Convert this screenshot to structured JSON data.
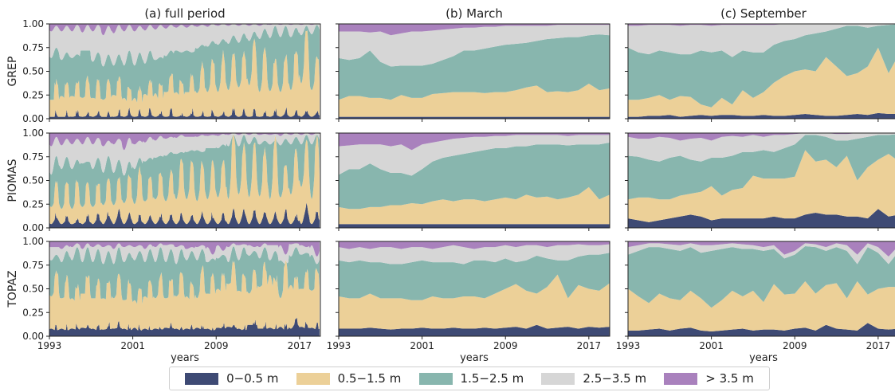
{
  "chart_data": {
    "type": "area",
    "stacked": true,
    "legend": {
      "placement": "bottom",
      "entries": [
        {
          "label": "0−0.5 m",
          "color": "#3e4a74"
        },
        {
          "label": "0.5−1.5 m",
          "color": "#ecd098"
        },
        {
          "label": "1.5−2.5 m",
          "color": "#88b6ae"
        },
        {
          "label": "2.5−3.5 m",
          "color": "#d6d6d6"
        },
        {
          "label": "> 3.5 m",
          "color": "#a981bd"
        }
      ]
    },
    "columns": [
      {
        "title": "(a) full period",
        "xlabel": "years",
        "xticks": [
          "1993",
          "2001",
          "2009",
          "2017"
        ]
      },
      {
        "title": "(b) March",
        "xlabel": "years",
        "xticks": [
          "1993",
          "2001",
          "2009",
          "2017"
        ]
      },
      {
        "title": "(c) September",
        "xlabel": "years",
        "xticks": [
          "1993",
          "2001",
          "2009",
          "2017"
        ]
      }
    ],
    "rows": [
      {
        "ylabel": "GREP"
      },
      {
        "ylabel": "PIOMAS"
      },
      {
        "ylabel": "TOPAZ"
      }
    ],
    "yticks": [
      "0.00",
      "0.25",
      "0.50",
      "0.75",
      "1.00"
    ],
    "ylim": [
      0,
      1
    ],
    "xlim": [
      1993,
      2019
    ],
    "grid": false,
    "monthly": {
      "description_of_values": "cumulative stacked boundaries (band1, band1+2, band1+2+3, band1+2+3+4) at annual minimum (September) and maximum (March)",
      "series_names": [
        "0−0.5 m",
        "0.5−1.5 m",
        "1.5−2.5 m",
        "2.5−3.5 m",
        "> 3.5 m"
      ]
    },
    "panels": [
      {
        "row": "GREP",
        "column": "(b) March",
        "years": [
          1993,
          1994,
          1995,
          1996,
          1997,
          1998,
          1999,
          2000,
          2001,
          2002,
          2003,
          2004,
          2005,
          2006,
          2007,
          2008,
          2009,
          2010,
          2011,
          2012,
          2013,
          2014,
          2015,
          2016,
          2017,
          2018,
          2019
        ],
        "cumulative": [
          [
            0.02,
            0.02,
            0.02,
            0.02,
            0.02,
            0.02,
            0.02,
            0.02,
            0.02,
            0.02,
            0.02,
            0.02,
            0.02,
            0.02,
            0.02,
            0.02,
            0.02,
            0.02,
            0.02,
            0.02,
            0.02,
            0.02,
            0.02,
            0.02,
            0.02,
            0.02,
            0.02
          ],
          [
            0.2,
            0.24,
            0.24,
            0.22,
            0.22,
            0.2,
            0.25,
            0.22,
            0.22,
            0.26,
            0.27,
            0.28,
            0.28,
            0.28,
            0.27,
            0.28,
            0.28,
            0.3,
            0.33,
            0.35,
            0.28,
            0.29,
            0.28,
            0.3,
            0.37,
            0.3,
            0.32
          ],
          [
            0.64,
            0.62,
            0.64,
            0.72,
            0.6,
            0.55,
            0.56,
            0.56,
            0.56,
            0.58,
            0.62,
            0.66,
            0.72,
            0.72,
            0.74,
            0.76,
            0.78,
            0.79,
            0.8,
            0.82,
            0.84,
            0.85,
            0.86,
            0.86,
            0.88,
            0.89,
            0.88
          ],
          [
            0.92,
            0.92,
            0.92,
            0.91,
            0.92,
            0.88,
            0.9,
            0.92,
            0.92,
            0.93,
            0.94,
            0.95,
            0.96,
            0.96,
            0.97,
            0.97,
            0.98,
            0.98,
            0.98,
            0.98,
            0.98,
            0.99,
            0.99,
            0.99,
            0.99,
            0.99,
            0.99
          ]
        ]
      },
      {
        "row": "GREP",
        "column": "(c) September",
        "years": [
          1993,
          1994,
          1995,
          1996,
          1997,
          1998,
          1999,
          2000,
          2001,
          2002,
          2003,
          2004,
          2005,
          2006,
          2007,
          2008,
          2009,
          2010,
          2011,
          2012,
          2013,
          2014,
          2015,
          2016,
          2017,
          2018,
          2019
        ],
        "cumulative": [
          [
            0.02,
            0.02,
            0.03,
            0.03,
            0.04,
            0.02,
            0.03,
            0.04,
            0.03,
            0.04,
            0.04,
            0.03,
            0.03,
            0.04,
            0.03,
            0.03,
            0.04,
            0.05,
            0.04,
            0.03,
            0.03,
            0.04,
            0.05,
            0.04,
            0.06,
            0.05,
            0.05
          ],
          [
            0.2,
            0.2,
            0.22,
            0.25,
            0.2,
            0.24,
            0.23,
            0.15,
            0.12,
            0.22,
            0.15,
            0.3,
            0.22,
            0.28,
            0.38,
            0.45,
            0.5,
            0.52,
            0.5,
            0.65,
            0.55,
            0.45,
            0.48,
            0.55,
            0.75,
            0.48,
            0.68
          ],
          [
            0.75,
            0.7,
            0.68,
            0.72,
            0.7,
            0.68,
            0.68,
            0.72,
            0.7,
            0.72,
            0.65,
            0.72,
            0.7,
            0.7,
            0.78,
            0.82,
            0.84,
            0.88,
            0.9,
            0.92,
            0.95,
            0.98,
            0.98,
            0.96,
            0.98,
            0.99,
            1.0
          ],
          [
            0.98,
            0.98,
            0.99,
            0.99,
            0.99,
            0.98,
            0.99,
            0.99,
            0.98,
            0.99,
            0.99,
            0.99,
            0.99,
            0.99,
            0.99,
            1.0,
            1.0,
            1.0,
            1.0,
            1.0,
            1.0,
            1.0,
            1.0,
            1.0,
            1.0,
            1.0,
            1.0
          ]
        ]
      },
      {
        "row": "PIOMAS",
        "column": "(b) March",
        "years": [
          1993,
          1994,
          1995,
          1996,
          1997,
          1998,
          1999,
          2000,
          2001,
          2002,
          2003,
          2004,
          2005,
          2006,
          2007,
          2008,
          2009,
          2010,
          2011,
          2012,
          2013,
          2014,
          2015,
          2016,
          2017,
          2018,
          2019
        ],
        "cumulative": [
          [
            0.04,
            0.04,
            0.04,
            0.04,
            0.04,
            0.04,
            0.04,
            0.04,
            0.04,
            0.04,
            0.04,
            0.04,
            0.04,
            0.04,
            0.04,
            0.04,
            0.04,
            0.04,
            0.04,
            0.04,
            0.04,
            0.04,
            0.04,
            0.04,
            0.04,
            0.04,
            0.04
          ],
          [
            0.22,
            0.2,
            0.2,
            0.22,
            0.22,
            0.24,
            0.24,
            0.26,
            0.25,
            0.28,
            0.3,
            0.28,
            0.3,
            0.3,
            0.28,
            0.3,
            0.32,
            0.3,
            0.35,
            0.32,
            0.33,
            0.3,
            0.32,
            0.35,
            0.43,
            0.3,
            0.35
          ],
          [
            0.56,
            0.62,
            0.62,
            0.68,
            0.62,
            0.58,
            0.58,
            0.55,
            0.62,
            0.7,
            0.74,
            0.76,
            0.78,
            0.8,
            0.82,
            0.84,
            0.84,
            0.86,
            0.86,
            0.88,
            0.88,
            0.88,
            0.87,
            0.88,
            0.88,
            0.88,
            0.9
          ],
          [
            0.86,
            0.87,
            0.88,
            0.88,
            0.88,
            0.86,
            0.88,
            0.82,
            0.88,
            0.9,
            0.92,
            0.94,
            0.95,
            0.96,
            0.96,
            0.97,
            0.97,
            0.98,
            0.98,
            0.98,
            0.98,
            0.98,
            0.97,
            0.98,
            0.98,
            0.98,
            0.98
          ]
        ]
      },
      {
        "row": "PIOMAS",
        "column": "(c) September",
        "years": [
          1993,
          1994,
          1995,
          1996,
          1997,
          1998,
          1999,
          2000,
          2001,
          2002,
          2003,
          2004,
          2005,
          2006,
          2007,
          2008,
          2009,
          2010,
          2011,
          2012,
          2013,
          2014,
          2015,
          2016,
          2017,
          2018,
          2019
        ],
        "cumulative": [
          [
            0.1,
            0.08,
            0.06,
            0.08,
            0.1,
            0.12,
            0.14,
            0.12,
            0.08,
            0.1,
            0.1,
            0.1,
            0.1,
            0.1,
            0.12,
            0.1,
            0.1,
            0.14,
            0.16,
            0.14,
            0.14,
            0.12,
            0.12,
            0.1,
            0.2,
            0.12,
            0.14
          ],
          [
            0.3,
            0.32,
            0.32,
            0.3,
            0.3,
            0.34,
            0.36,
            0.38,
            0.44,
            0.34,
            0.4,
            0.42,
            0.55,
            0.52,
            0.52,
            0.52,
            0.54,
            0.82,
            0.7,
            0.72,
            0.64,
            0.76,
            0.5,
            0.64,
            0.72,
            0.78,
            0.7
          ],
          [
            0.76,
            0.75,
            0.72,
            0.7,
            0.74,
            0.76,
            0.72,
            0.7,
            0.74,
            0.74,
            0.76,
            0.8,
            0.8,
            0.82,
            0.8,
            0.84,
            0.88,
            0.98,
            0.98,
            0.96,
            0.92,
            0.92,
            0.94,
            0.96,
            0.98,
            0.98,
            0.99
          ],
          [
            0.96,
            0.94,
            0.94,
            0.96,
            0.95,
            0.92,
            0.94,
            0.95,
            0.92,
            0.96,
            0.97,
            0.96,
            0.98,
            0.96,
            0.98,
            0.98,
            0.99,
            1.0,
            1.0,
            1.0,
            0.99,
            0.99,
            1.0,
            1.0,
            1.0,
            1.0,
            1.0
          ]
        ]
      },
      {
        "row": "TOPAZ",
        "column": "(b) March",
        "years": [
          1993,
          1994,
          1995,
          1996,
          1997,
          1998,
          1999,
          2000,
          2001,
          2002,
          2003,
          2004,
          2005,
          2006,
          2007,
          2008,
          2009,
          2010,
          2011,
          2012,
          2013,
          2014,
          2015,
          2016,
          2017,
          2018,
          2019
        ],
        "cumulative": [
          [
            0.08,
            0.08,
            0.08,
            0.09,
            0.08,
            0.07,
            0.08,
            0.08,
            0.09,
            0.08,
            0.08,
            0.09,
            0.08,
            0.08,
            0.09,
            0.08,
            0.09,
            0.1,
            0.08,
            0.12,
            0.08,
            0.09,
            0.1,
            0.08,
            0.1,
            0.09,
            0.1
          ],
          [
            0.42,
            0.4,
            0.4,
            0.45,
            0.4,
            0.4,
            0.4,
            0.38,
            0.38,
            0.42,
            0.4,
            0.4,
            0.42,
            0.42,
            0.4,
            0.45,
            0.5,
            0.55,
            0.48,
            0.45,
            0.52,
            0.65,
            0.4,
            0.54,
            0.5,
            0.48,
            0.56
          ],
          [
            0.8,
            0.78,
            0.8,
            0.78,
            0.78,
            0.76,
            0.76,
            0.78,
            0.8,
            0.78,
            0.78,
            0.78,
            0.76,
            0.8,
            0.8,
            0.78,
            0.82,
            0.78,
            0.8,
            0.85,
            0.82,
            0.8,
            0.8,
            0.84,
            0.86,
            0.86,
            0.88
          ],
          [
            0.94,
            0.92,
            0.94,
            0.92,
            0.94,
            0.94,
            0.92,
            0.94,
            0.94,
            0.92,
            0.94,
            0.96,
            0.94,
            0.92,
            0.94,
            0.94,
            0.96,
            0.94,
            0.96,
            0.96,
            0.94,
            0.96,
            0.96,
            0.97,
            0.96,
            0.96,
            0.97
          ]
        ]
      },
      {
        "row": "TOPAZ",
        "column": "(c) September",
        "years": [
          1993,
          1994,
          1995,
          1996,
          1997,
          1998,
          1999,
          2000,
          2001,
          2002,
          2003,
          2004,
          2005,
          2006,
          2007,
          2008,
          2009,
          2010,
          2011,
          2012,
          2013,
          2014,
          2015,
          2016,
          2017,
          2018,
          2019
        ],
        "cumulative": [
          [
            0.06,
            0.06,
            0.07,
            0.08,
            0.06,
            0.08,
            0.09,
            0.06,
            0.05,
            0.06,
            0.07,
            0.08,
            0.06,
            0.07,
            0.07,
            0.06,
            0.08,
            0.09,
            0.06,
            0.12,
            0.08,
            0.07,
            0.06,
            0.14,
            0.08,
            0.07,
            0.08
          ],
          [
            0.5,
            0.42,
            0.35,
            0.45,
            0.4,
            0.38,
            0.48,
            0.4,
            0.3,
            0.38,
            0.48,
            0.42,
            0.48,
            0.36,
            0.55,
            0.44,
            0.45,
            0.58,
            0.45,
            0.54,
            0.56,
            0.4,
            0.58,
            0.44,
            0.5,
            0.52,
            0.52
          ],
          [
            0.86,
            0.9,
            0.94,
            0.94,
            0.92,
            0.9,
            0.94,
            0.88,
            0.9,
            0.92,
            0.94,
            0.92,
            0.92,
            0.9,
            0.92,
            0.82,
            0.86,
            0.95,
            0.94,
            0.9,
            0.94,
            0.9,
            0.76,
            0.94,
            0.88,
            0.76,
            0.9
          ],
          [
            0.94,
            0.96,
            0.98,
            0.98,
            0.97,
            0.96,
            0.98,
            0.96,
            0.96,
            0.97,
            0.98,
            0.97,
            0.96,
            0.94,
            0.96,
            0.86,
            0.9,
            0.98,
            0.97,
            0.94,
            0.98,
            0.96,
            0.86,
            0.98,
            0.94,
            0.84,
            0.96
          ]
        ]
      }
    ]
  }
}
